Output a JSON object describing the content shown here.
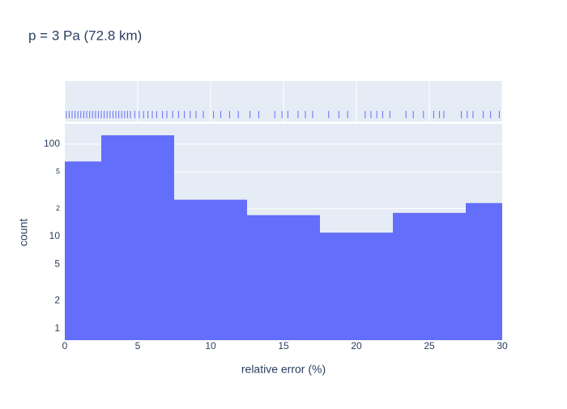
{
  "chart_data": {
    "type": "histogram",
    "title": "p = 3 Pa (72.8 km)",
    "x_label": "relative error (%)",
    "y_label": "count",
    "bins": [
      0,
      2.5,
      7.5,
      12.5,
      17.5,
      22.5,
      27.5,
      30
    ],
    "values": [
      65,
      125,
      25,
      17,
      11,
      18,
      23
    ],
    "color": "#636efa",
    "xlim": [
      0,
      30
    ],
    "xticks": [
      0,
      5,
      10,
      15,
      20,
      25,
      30
    ],
    "ylim": [
      0.75,
      166
    ],
    "log_y": true,
    "yticks": [
      1,
      2,
      5,
      10,
      {
        "value": 20,
        "label": "2"
      },
      {
        "value": 50,
        "label": "5"
      },
      100
    ],
    "grid": true,
    "rug": [
      0.1,
      0.3,
      0.5,
      0.7,
      0.9,
      1.1,
      1.3,
      1.5,
      1.7,
      1.9,
      2.1,
      2.3,
      2.5,
      2.7,
      2.9,
      3.1,
      3.3,
      3.5,
      3.7,
      3.9,
      4.1,
      4.3,
      4.5,
      4.8,
      5.1,
      5.4,
      5.7,
      6.0,
      6.3,
      6.7,
      7.0,
      7.4,
      7.8,
      8.2,
      8.6,
      9.0,
      9.5,
      10.2,
      10.7,
      11.3,
      11.9,
      12.7,
      13.3,
      14.4,
      14.9,
      15.3,
      16.0,
      16.5,
      17.0,
      18.1,
      18.8,
      19.4,
      20.6,
      21.0,
      21.4,
      21.8,
      22.3,
      23.4,
      23.9,
      24.6,
      25.3,
      25.7,
      26.0,
      27.2,
      27.6,
      28.0,
      28.7,
      29.2,
      29.8
    ]
  }
}
